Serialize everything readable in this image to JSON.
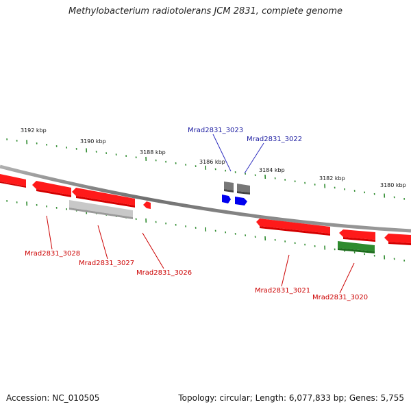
{
  "title": "Methylobacterium radiotolerans JCM 2831, complete genome",
  "footer": {
    "accession": "Accession: NC_010505",
    "summary": "Topology: circular; Length: 6,077,833 bp; Genes: 5,755"
  },
  "colors": {
    "backbone": "#888888",
    "ticks": "#2e8b2e",
    "gene_forward_red": "#ff0000",
    "gene_reverse_red": "#ff0000",
    "gene_green": "#2e8b2e",
    "gene_gray_light": "#bbbbbb",
    "gene_gray_dark": "#666666",
    "gene_blue": "#0000ee",
    "label_red": "#cc0000",
    "label_blue": "#00008b"
  },
  "scale": {
    "unit": "kbp",
    "labels": [
      {
        "kbp": 3192,
        "text": "3192 kbp"
      },
      {
        "kbp": 3190,
        "text": "3190 kbp"
      },
      {
        "kbp": 3188,
        "text": "3188 kbp"
      },
      {
        "kbp": 3186,
        "text": "3186 kbp"
      },
      {
        "kbp": 3184,
        "text": "3184 kbp"
      },
      {
        "kbp": 3182,
        "text": "3182 kbp"
      },
      {
        "kbp": 3180,
        "text": "3180 kbp"
      }
    ]
  },
  "gene_labels": [
    {
      "id": "Mrad2831_3023",
      "color": "blue"
    },
    {
      "id": "Mrad2831_3022",
      "color": "blue"
    },
    {
      "id": "Mrad2831_3028",
      "color": "red"
    },
    {
      "id": "Mrad2831_3027",
      "color": "red"
    },
    {
      "id": "Mrad2831_3026",
      "color": "red"
    },
    {
      "id": "Mrad2831_3021",
      "color": "red"
    },
    {
      "id": "Mrad2831_3020",
      "color": "red"
    }
  ]
}
